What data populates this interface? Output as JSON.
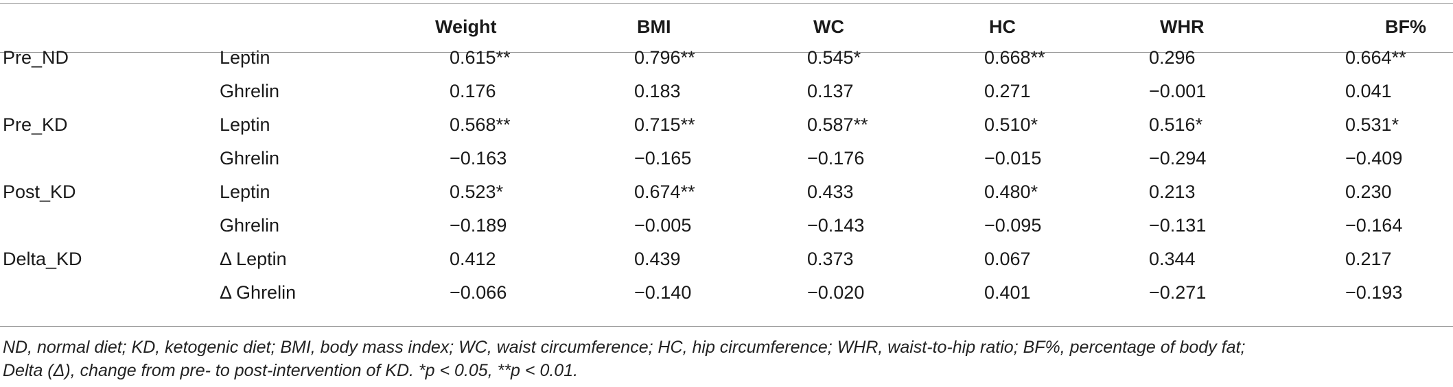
{
  "table": {
    "columns": [
      "Weight",
      "BMI",
      "WC",
      "HC",
      "WHR",
      "BF%"
    ],
    "rows": [
      {
        "group": "Pre_ND",
        "variable": "Leptin",
        "values": [
          "0.615**",
          "0.796**",
          "0.545*",
          "0.668**",
          "0.296",
          "0.664**"
        ]
      },
      {
        "group": "",
        "variable": "Ghrelin",
        "values": [
          "0.176",
          "0.183",
          "0.137",
          "0.271",
          "−0.001",
          "0.041"
        ]
      },
      {
        "group": "Pre_KD",
        "variable": "Leptin",
        "values": [
          "0.568**",
          "0.715**",
          "0.587**",
          "0.510*",
          "0.516*",
          "0.531*"
        ]
      },
      {
        "group": "",
        "variable": "Ghrelin",
        "values": [
          "−0.163",
          "−0.165",
          "−0.176",
          "−0.015",
          "−0.294",
          "−0.409"
        ]
      },
      {
        "group": "Post_KD",
        "variable": "Leptin",
        "values": [
          "0.523*",
          "0.674**",
          "0.433",
          "0.480*",
          "0.213",
          "0.230"
        ]
      },
      {
        "group": "",
        "variable": "Ghrelin",
        "values": [
          "−0.189",
          "−0.005",
          "−0.143",
          "−0.095",
          "−0.131",
          "−0.164"
        ]
      },
      {
        "group": "Delta_KD",
        "variable": "Δ Leptin",
        "values": [
          "0.412",
          "0.439",
          "0.373",
          "0.067",
          "0.344",
          "0.217"
        ]
      },
      {
        "group": "",
        "variable": "Δ Ghrelin",
        "values": [
          "−0.066",
          "−0.140",
          "−0.020",
          "0.401",
          "−0.271",
          "−0.193"
        ]
      }
    ]
  },
  "footnote": {
    "line1": "ND, normal diet; KD, ketogenic diet; BMI, body mass index; WC, waist circumference; HC, hip circumference; WHR, waist-to-hip ratio; BF%, percentage of body fat;",
    "line2": "Delta (Δ), change from pre- to post-intervention of KD. *p < 0.05, **p < 0.01."
  }
}
